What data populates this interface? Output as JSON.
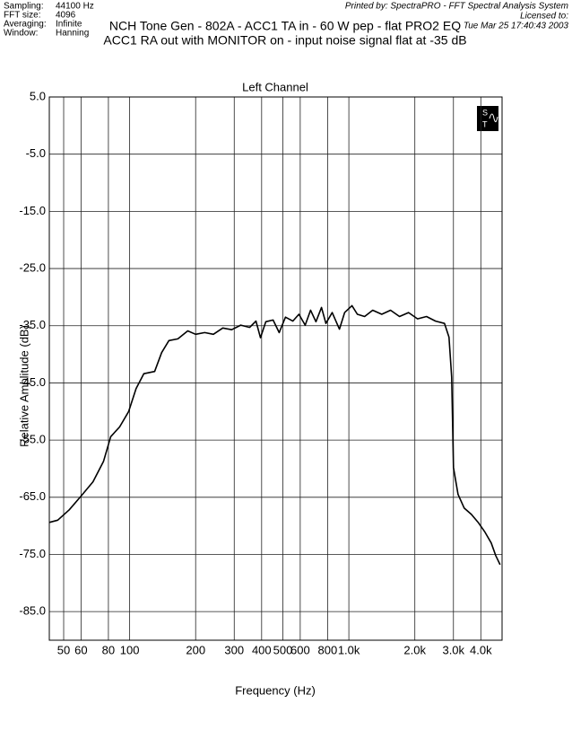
{
  "chart_data": {
    "type": "line",
    "info": [
      {
        "label": "Sampling:",
        "value": "44100 Hz"
      },
      {
        "label": "FFT size:",
        "value": "4096"
      },
      {
        "label": "Averaging:",
        "value": "Infinite"
      },
      {
        "label": "Window:",
        "value": "Hanning"
      }
    ],
    "title": "NCH Tone Gen - 802A - ACC1 TA in - 60 W pep - flat PRO2 EQ",
    "subtitle": "ACC1 RA out with MONITOR on - input noise signal flat at -35 dB",
    "printed_by": "Printed by: SpectraPRO - FFT Spectral Analysis System",
    "licensed": "Licensed to:",
    "date": "Tue Mar 25 17:40:43 2003",
    "plot_title": "Left Channel",
    "xlabel": "Frequency (Hz)",
    "ylabel": "Relative Amplitude (dB)",
    "xscale": "log",
    "grid": true,
    "color": "#000000",
    "xlim": [
      43,
      5000
    ],
    "ylim": [
      -90,
      5
    ],
    "xticks": [
      50,
      60,
      80,
      100,
      200,
      300,
      400,
      500,
      600,
      800,
      {
        "value": 1000,
        "label": "1.0k"
      },
      {
        "value": 2000,
        "label": "2.0k"
      },
      {
        "value": 3000,
        "label": "3.0k"
      },
      {
        "value": 4000,
        "label": "4.0k"
      }
    ],
    "yticks": [
      {
        "value": 5,
        "label": "5.0"
      },
      {
        "value": -5,
        "label": "-5.0"
      },
      {
        "value": -15,
        "label": "-15.0"
      },
      {
        "value": -25,
        "label": "-25.0"
      },
      {
        "value": -35,
        "label": "-35.0"
      },
      {
        "value": -45,
        "label": "-45.0"
      },
      {
        "value": -55,
        "label": "-55.0"
      },
      {
        "value": -65,
        "label": "-65.0"
      },
      {
        "value": -75,
        "label": "-75.0"
      },
      {
        "value": -85,
        "label": "-85.0"
      }
    ],
    "x": [
      43,
      47,
      53,
      60,
      68,
      76,
      82,
      90,
      99,
      107,
      116,
      130,
      140,
      151,
      166,
      184,
      200,
      220,
      241,
      266,
      292,
      321,
      353,
      377,
      395,
      418,
      451,
      481,
      514,
      555,
      592,
      632,
      669,
      708,
      750,
      786,
      839,
      906,
      957,
      1033,
      1094,
      1180,
      1285,
      1413,
      1550,
      1703,
      1872,
      2057,
      2261,
      2485,
      2731,
      2863,
      2944,
      3000,
      3148,
      3360,
      3623,
      3908,
      4178,
      4460,
      4677,
      4898
    ],
    "values": [
      -69.4,
      -69,
      -67.2,
      -64.8,
      -62.3,
      -58.7,
      -54.4,
      -52.7,
      -50,
      -46,
      -43.4,
      -43,
      -39.7,
      -37.6,
      -37.3,
      -35.9,
      -36.5,
      -36.2,
      -36.5,
      -35.4,
      -35.7,
      -34.9,
      -35.3,
      -34.2,
      -37.1,
      -34.3,
      -34,
      -36.2,
      -33.5,
      -34.2,
      -33,
      -34.9,
      -32.3,
      -34.3,
      -31.8,
      -34.6,
      -32.7,
      -35.6,
      -32.7,
      -31.5,
      -33,
      -33.4,
      -32.3,
      -33,
      -32.3,
      -33.4,
      -32.7,
      -33.8,
      -33.4,
      -34.2,
      -34.6,
      -37,
      -44,
      -59.8,
      -64.5,
      -66.9,
      -68,
      -69.5,
      -71.1,
      -73,
      -75.2,
      -76.8
    ]
  }
}
